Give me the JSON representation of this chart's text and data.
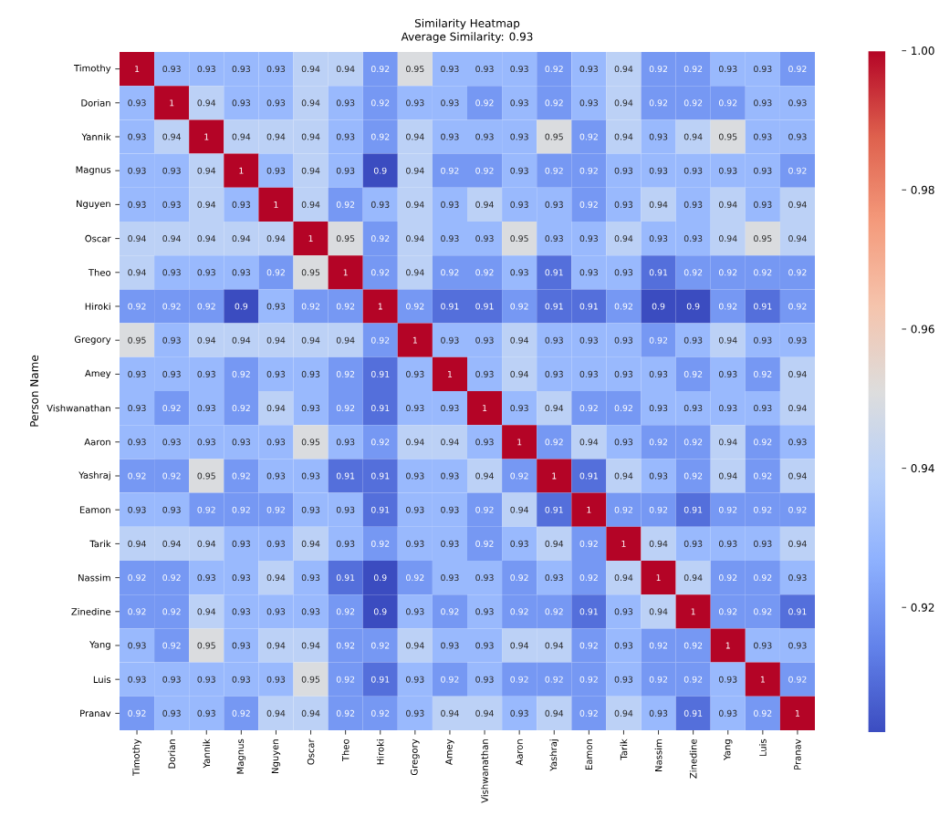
{
  "chart_data": {
    "type": "heatmap",
    "title": "Similarity Heatmap",
    "subtitle": "Average Similarity: 0.93",
    "ylabel": "Person Name",
    "categories": [
      "Timothy",
      "Dorian",
      "Yannik",
      "Magnus",
      "Nguyen",
      "Oscar",
      "Theo",
      "Hiroki",
      "Gregory",
      "Amey",
      "Vishwanathan",
      "Aaron",
      "Yashraj",
      "Eamon",
      "Tarik",
      "Nassim",
      "Zinedine",
      "Yang",
      "Luis",
      "Pranav"
    ],
    "y_categories": [
      "Timothy",
      "Dorian",
      "Yannik",
      "Magnus",
      "Nguyen",
      "Oscar",
      "Theo",
      "Hiroki",
      "Gregory",
      "Amey",
      "Vishwanathan",
      "Aaron",
      "Yashraj",
      "Eamon",
      "Tarik",
      "Nassim",
      "Zinedine",
      "Yang",
      "Luis",
      "Pranav"
    ],
    "cells": [
      [
        1,
        0.93,
        0.93,
        0.93,
        0.93,
        0.94,
        0.94,
        0.92,
        0.95,
        0.93,
        0.93,
        0.93,
        0.92,
        0.93,
        0.94,
        0.92,
        0.92,
        0.93,
        0.93,
        0.92
      ],
      [
        0.93,
        1,
        0.94,
        0.93,
        0.93,
        0.94,
        0.93,
        0.92,
        0.93,
        0.93,
        0.92,
        0.93,
        0.92,
        0.93,
        0.94,
        0.92,
        0.92,
        0.92,
        0.93,
        0.93
      ],
      [
        0.93,
        0.94,
        1,
        0.94,
        0.94,
        0.94,
        0.93,
        0.92,
        0.94,
        0.93,
        0.93,
        0.93,
        0.95,
        0.92,
        0.94,
        0.93,
        0.94,
        0.95,
        0.93,
        0.93
      ],
      [
        0.93,
        0.93,
        0.94,
        1,
        0.93,
        0.94,
        0.93,
        0.9,
        0.94,
        0.92,
        0.92,
        0.93,
        0.92,
        0.92,
        0.93,
        0.93,
        0.93,
        0.93,
        0.93,
        0.92
      ],
      [
        0.93,
        0.93,
        0.94,
        0.93,
        1,
        0.94,
        0.92,
        0.93,
        0.94,
        0.93,
        0.94,
        0.93,
        0.93,
        0.92,
        0.93,
        0.94,
        0.93,
        0.94,
        0.93,
        0.94
      ],
      [
        0.94,
        0.94,
        0.94,
        0.94,
        0.94,
        1,
        0.95,
        0.92,
        0.94,
        0.93,
        0.93,
        0.95,
        0.93,
        0.93,
        0.94,
        0.93,
        0.93,
        0.94,
        0.95,
        0.94
      ],
      [
        0.94,
        0.93,
        0.93,
        0.93,
        0.92,
        0.95,
        1,
        0.92,
        0.94,
        0.92,
        0.92,
        0.93,
        0.91,
        0.93,
        0.93,
        0.91,
        0.92,
        0.92,
        0.92,
        0.92
      ],
      [
        0.92,
        0.92,
        0.92,
        0.9,
        0.93,
        0.92,
        0.92,
        1,
        0.92,
        0.91,
        0.91,
        0.92,
        0.91,
        0.91,
        0.92,
        0.9,
        0.9,
        0.92,
        0.91,
        0.92
      ],
      [
        0.95,
        0.93,
        0.94,
        0.94,
        0.94,
        0.94,
        0.94,
        0.92,
        1,
        0.93,
        0.93,
        0.94,
        0.93,
        0.93,
        0.93,
        0.92,
        0.93,
        0.94,
        0.93,
        0.93
      ],
      [
        0.93,
        0.93,
        0.93,
        0.92,
        0.93,
        0.93,
        0.92,
        0.91,
        0.93,
        1,
        0.93,
        0.94,
        0.93,
        0.93,
        0.93,
        0.93,
        0.92,
        0.93,
        0.92,
        0.94
      ],
      [
        0.93,
        0.92,
        0.93,
        0.92,
        0.94,
        0.93,
        0.92,
        0.91,
        0.93,
        0.93,
        1,
        0.93,
        0.94,
        0.92,
        0.92,
        0.93,
        0.93,
        0.93,
        0.93,
        0.94
      ],
      [
        0.93,
        0.93,
        0.93,
        0.93,
        0.93,
        0.95,
        0.93,
        0.92,
        0.94,
        0.94,
        0.93,
        1,
        0.92,
        0.94,
        0.93,
        0.92,
        0.92,
        0.94,
        0.92,
        0.93
      ],
      [
        0.92,
        0.92,
        0.95,
        0.92,
        0.93,
        0.93,
        0.91,
        0.91,
        0.93,
        0.93,
        0.94,
        0.92,
        1,
        0.91,
        0.94,
        0.93,
        0.92,
        0.94,
        0.92,
        0.94
      ],
      [
        0.93,
        0.93,
        0.92,
        0.92,
        0.92,
        0.93,
        0.93,
        0.91,
        0.93,
        0.93,
        0.92,
        0.94,
        0.91,
        1,
        0.92,
        0.92,
        0.91,
        0.92,
        0.92,
        0.92
      ],
      [
        0.94,
        0.94,
        0.94,
        0.93,
        0.93,
        0.94,
        0.93,
        0.92,
        0.93,
        0.93,
        0.92,
        0.93,
        0.94,
        0.92,
        1,
        0.94,
        0.93,
        0.93,
        0.93,
        0.94
      ],
      [
        0.92,
        0.92,
        0.93,
        0.93,
        0.94,
        0.93,
        0.91,
        0.9,
        0.92,
        0.93,
        0.93,
        0.92,
        0.93,
        0.92,
        0.94,
        1,
        0.94,
        0.92,
        0.92,
        0.93
      ],
      [
        0.92,
        0.92,
        0.94,
        0.93,
        0.93,
        0.93,
        0.92,
        0.9,
        0.93,
        0.92,
        0.93,
        0.92,
        0.92,
        0.91,
        0.93,
        0.94,
        1,
        0.92,
        0.92,
        0.91
      ],
      [
        0.93,
        0.92,
        0.95,
        0.93,
        0.94,
        0.94,
        0.92,
        0.92,
        0.94,
        0.93,
        0.93,
        0.94,
        0.94,
        0.92,
        0.93,
        0.92,
        0.92,
        1,
        0.93,
        0.93
      ],
      [
        0.93,
        0.93,
        0.93,
        0.93,
        0.93,
        0.95,
        0.92,
        0.91,
        0.93,
        0.92,
        0.93,
        0.92,
        0.92,
        0.92,
        0.93,
        0.92,
        0.92,
        0.93,
        1,
        0.92
      ],
      [
        0.92,
        0.93,
        0.93,
        0.92,
        0.94,
        0.94,
        0.92,
        0.92,
        0.93,
        0.94,
        0.94,
        0.93,
        0.94,
        0.92,
        0.94,
        0.93,
        0.91,
        0.93,
        0.92,
        1
      ]
    ],
    "clim": [
      0.902,
      1
    ],
    "cticks": [
      0.92,
      0.94,
      0.96,
      0.98,
      {
        "value": 1,
        "label": "1.00"
      }
    ],
    "data_labels": true
  }
}
